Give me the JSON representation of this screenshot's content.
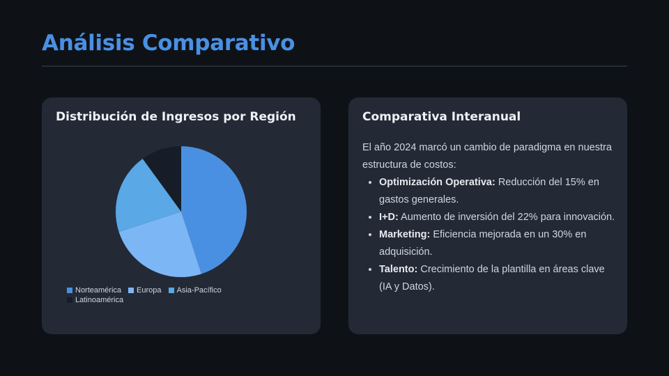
{
  "page": {
    "title": "Análisis Comparativo"
  },
  "left_card": {
    "title": "Distribución de Ingresos por Región"
  },
  "right_card": {
    "title": "Comparativa Interanual",
    "intro": "El año 2024 marcó un cambio de paradigma en nuestra estructura de costos:",
    "bullets": [
      {
        "label": "Optimización Operativa:",
        "text": " Reducción del 15% en gastos generales."
      },
      {
        "label": "I+D:",
        "text": " Aumento de inversión del 22% para innovación."
      },
      {
        "label": "Marketing:",
        "text": " Eficiencia mejorada en un 30% en adquisición."
      },
      {
        "label": "Talento:",
        "text": " Crecimiento de la plantilla en áreas clave (IA y Datos)."
      }
    ]
  },
  "colors": {
    "accent": "#4a90e2",
    "background": "#0e1217",
    "card": "#232a36"
  },
  "chart_data": {
    "type": "pie",
    "title": "Distribución de Ingresos por Región",
    "categories": [
      "Norteamérica",
      "Europa",
      "Asia-Pacífico",
      "Latinoamérica"
    ],
    "values": [
      45,
      25,
      20,
      10
    ],
    "colors": [
      "#4a90e2",
      "#7db6f5",
      "#5aa8e6",
      "#161d28"
    ],
    "legend_position": "bottom-left"
  }
}
